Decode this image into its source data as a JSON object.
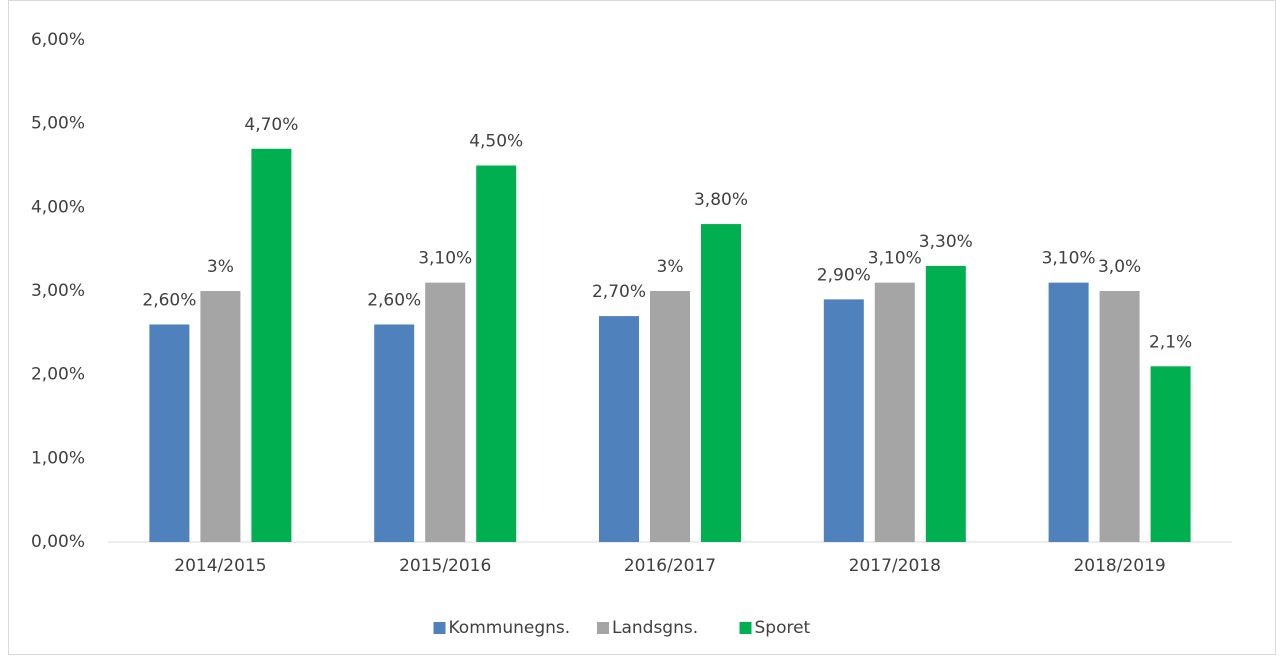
{
  "chart_data": {
    "type": "bar",
    "categories": [
      "2014/2015",
      "2015/2016",
      "2016/2017",
      "2017/2018",
      "2018/2019"
    ],
    "series": [
      {
        "name": "Kommunegns.",
        "color": "#4f81bd",
        "values": [
          2.6,
          2.6,
          2.7,
          2.9,
          3.1
        ],
        "value_labels": [
          "2,60%",
          "2,60%",
          "2,70%",
          "2,90%",
          "3,10%"
        ]
      },
      {
        "name": "Landsgns.",
        "color": "#a5a5a5",
        "values": [
          3,
          3.1,
          3,
          3.1,
          3
        ],
        "value_labels": [
          "3%",
          "3,10%",
          "3%",
          "3,10%",
          "3,0%"
        ]
      },
      {
        "name": "Sporet",
        "color": "#00b050",
        "values": [
          4.7,
          4.5,
          3.8,
          3.3,
          2.1
        ],
        "value_labels": [
          "4,70%",
          "4,50%",
          "3,80%",
          "3,30%",
          "2,1%"
        ]
      }
    ],
    "ylim": [
      0,
      6
    ],
    "yticks": [
      {
        "value": 0,
        "label": "0,00%"
      },
      {
        "value": 1,
        "label": "1,00%"
      },
      {
        "value": 2,
        "label": "2,00%"
      },
      {
        "value": 3,
        "label": "3,00%"
      },
      {
        "value": 4,
        "label": "4,00%"
      },
      {
        "value": 5,
        "label": "5,00%"
      },
      {
        "value": 6,
        "label": "6,00%"
      }
    ],
    "grid": false,
    "legend": "bottom"
  }
}
